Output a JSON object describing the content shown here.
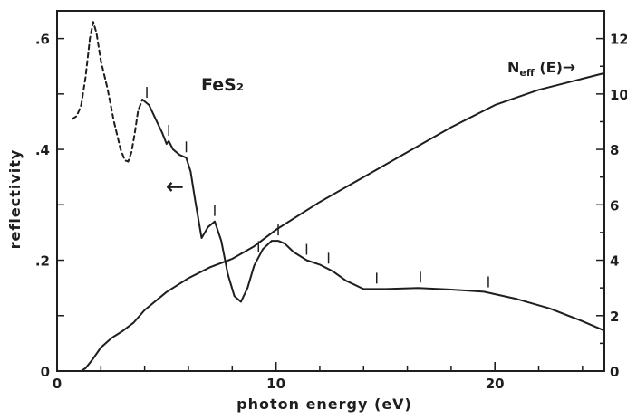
{
  "chart_data": {
    "type": "line",
    "title": "",
    "xlabel": "photon energy (eV)",
    "ylabel": "reflectivity",
    "xlim": [
      0,
      25
    ],
    "ylim": [
      0,
      0.65
    ],
    "y2lim": [
      0,
      13
    ],
    "grid": false,
    "x_ticks": [
      0,
      10,
      20
    ],
    "x_tick_labels": [
      "0",
      "10",
      "20"
    ],
    "y_ticks": [
      0,
      0.2,
      0.4,
      0.6
    ],
    "y_tick_labels": [
      "0",
      ".2",
      ".4",
      ".6"
    ],
    "y2_ticks": [
      0,
      2,
      4,
      6,
      8,
      10,
      12
    ],
    "y2_tick_labels": [
      "0",
      "2",
      "4",
      "6",
      "8",
      "10",
      "12"
    ],
    "annotations": {
      "compound": "FeS₂",
      "neff_label": "N",
      "neff_sub": "eff",
      "neff_rest": " (E)",
      "arrow_left": "←",
      "arrow_right": "→"
    },
    "series": [
      {
        "axis": "left",
        "style": "dashed",
        "x": [
          0.7,
          0.9,
          1.1,
          1.3,
          1.5,
          1.65,
          1.8,
          2.0,
          2.3,
          2.6,
          2.9,
          3.1,
          3.25,
          3.4,
          3.55,
          3.7,
          3.9
        ],
        "y": [
          0.455,
          0.46,
          0.48,
          0.53,
          0.6,
          0.63,
          0.61,
          0.56,
          0.51,
          0.45,
          0.4,
          0.38,
          0.378,
          0.395,
          0.43,
          0.47,
          0.49
        ]
      },
      {
        "axis": "left",
        "style": "solid",
        "x": [
          3.9,
          4.2,
          4.5,
          4.8,
          5.0,
          5.1,
          5.3,
          5.6,
          5.9,
          6.1,
          6.3,
          6.6,
          6.9,
          7.2,
          7.5,
          7.8,
          8.1,
          8.4,
          8.7,
          9.0,
          9.4,
          9.8,
          10.1,
          10.4,
          10.8,
          11.4,
          12.0,
          12.6,
          13.2,
          14.0,
          15.0,
          16.5,
          18.0,
          19.5,
          21.0,
          22.5,
          24.0,
          25.0
        ],
        "y": [
          0.49,
          0.48,
          0.455,
          0.43,
          0.41,
          0.415,
          0.4,
          0.39,
          0.385,
          0.36,
          0.31,
          0.24,
          0.26,
          0.27,
          0.235,
          0.175,
          0.135,
          0.125,
          0.15,
          0.19,
          0.22,
          0.235,
          0.235,
          0.23,
          0.215,
          0.2,
          0.192,
          0.18,
          0.163,
          0.148,
          0.148,
          0.15,
          0.147,
          0.143,
          0.13,
          0.113,
          0.09,
          0.073
        ]
      },
      {
        "axis": "right",
        "style": "solid",
        "x": [
          1.1,
          1.3,
          1.6,
          2.0,
          2.5,
          3.0,
          3.5,
          4.0,
          5.0,
          6.0,
          7.0,
          8.0,
          9.0,
          10.0,
          12.0,
          14.0,
          16.0,
          18.0,
          20.0,
          22.0,
          24.0,
          25.0
        ],
        "y": [
          0.0,
          0.1,
          0.4,
          0.85,
          1.2,
          1.45,
          1.75,
          2.2,
          2.85,
          3.35,
          3.75,
          4.05,
          4.5,
          5.1,
          6.1,
          7.0,
          7.9,
          8.8,
          9.6,
          10.15,
          10.55,
          10.75
        ]
      }
    ]
  }
}
